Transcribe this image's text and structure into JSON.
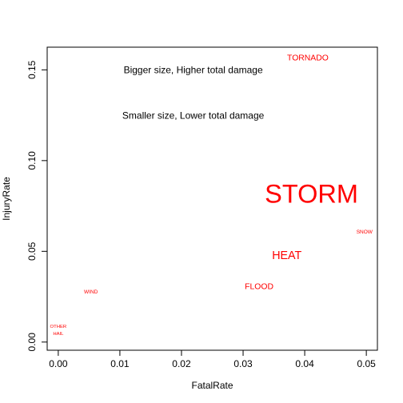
{
  "chart_data": {
    "type": "scatter",
    "xlabel": "FatalRate",
    "ylabel": "InjuryRate",
    "xlim": [
      -0.0018,
      0.0518
    ],
    "ylim": [
      -0.0045,
      0.1625
    ],
    "x_ticks": [
      0.0,
      0.01,
      0.02,
      0.03,
      0.04,
      0.05
    ],
    "x_tick_labels": [
      "0.00",
      "0.01",
      "0.02",
      "0.03",
      "0.04",
      "0.05"
    ],
    "y_ticks": [
      0.0,
      0.05,
      0.1,
      0.15
    ],
    "y_tick_labels": [
      "0.00",
      "0.05",
      "0.10",
      "0.15"
    ],
    "grid": false,
    "label_color": "#ff0000",
    "annotations": [
      {
        "text": "Bigger size, Higher total damage",
        "x": 0.0219,
        "y": 0.1495
      },
      {
        "text": "Smaller size, Lower total damage",
        "x": 0.0219,
        "y": 0.1245
      }
    ],
    "points": [
      {
        "label": "TORNADO",
        "x": 0.0405,
        "y": 0.1565,
        "size": 0.8
      },
      {
        "label": "STORM",
        "x": 0.0411,
        "y": 0.0805,
        "size": 2.5
      },
      {
        "label": "SNOW",
        "x": 0.0497,
        "y": 0.0605,
        "size": 0.5
      },
      {
        "label": "HEAT",
        "x": 0.0371,
        "y": 0.0475,
        "size": 1.1
      },
      {
        "label": "FLOOD",
        "x": 0.0326,
        "y": 0.0305,
        "size": 0.8
      },
      {
        "label": "WIND",
        "x": 0.0053,
        "y": 0.0275,
        "size": 0.5
      },
      {
        "label": "OTHER",
        "x": 0.0,
        "y": 0.0085,
        "size": 0.45
      },
      {
        "label": "HAIL",
        "x": 0.0,
        "y": 0.0045,
        "size": 0.45
      }
    ]
  }
}
